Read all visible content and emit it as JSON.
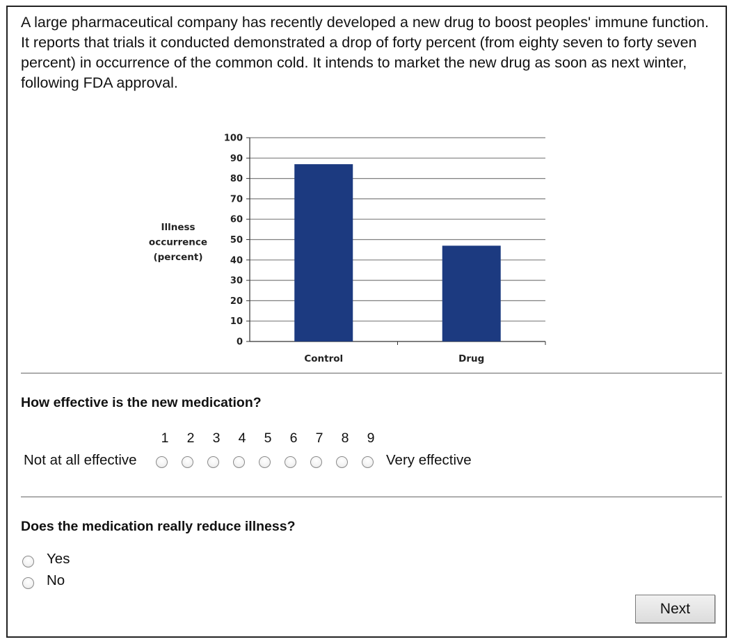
{
  "intro_text": "A large pharmaceutical company has recently developed a new drug to boost peoples' immune function. It reports that trials it conducted demonstrated a drop of forty percent (from eighty seven to forty seven percent) in occurrence of the common cold. It intends to market the new drug as soon as next winter, following FDA approval.",
  "chart_data": {
    "type": "bar",
    "categories": [
      "Control",
      "Drug"
    ],
    "values": [
      87,
      47
    ],
    "title": "",
    "xlabel": "",
    "ylabel": "Illness occurrence (percent)",
    "ylabel_lines": [
      "Illness",
      "occurrence",
      "(percent)"
    ],
    "ylim": [
      0,
      100
    ],
    "yticks": [
      0,
      10,
      20,
      30,
      40,
      50,
      60,
      70,
      80,
      90,
      100
    ],
    "grid": true,
    "bar_color": "#1c3a80"
  },
  "question1": {
    "title": "How effective is the new medication?",
    "scale_numbers": [
      "1",
      "2",
      "3",
      "4",
      "5",
      "6",
      "7",
      "8",
      "9"
    ],
    "low_label": "Not at all effective",
    "high_label": "Very effective"
  },
  "question2": {
    "title": "Does the medication really reduce illness?",
    "options": [
      "Yes",
      "No"
    ]
  },
  "next_label": "Next"
}
